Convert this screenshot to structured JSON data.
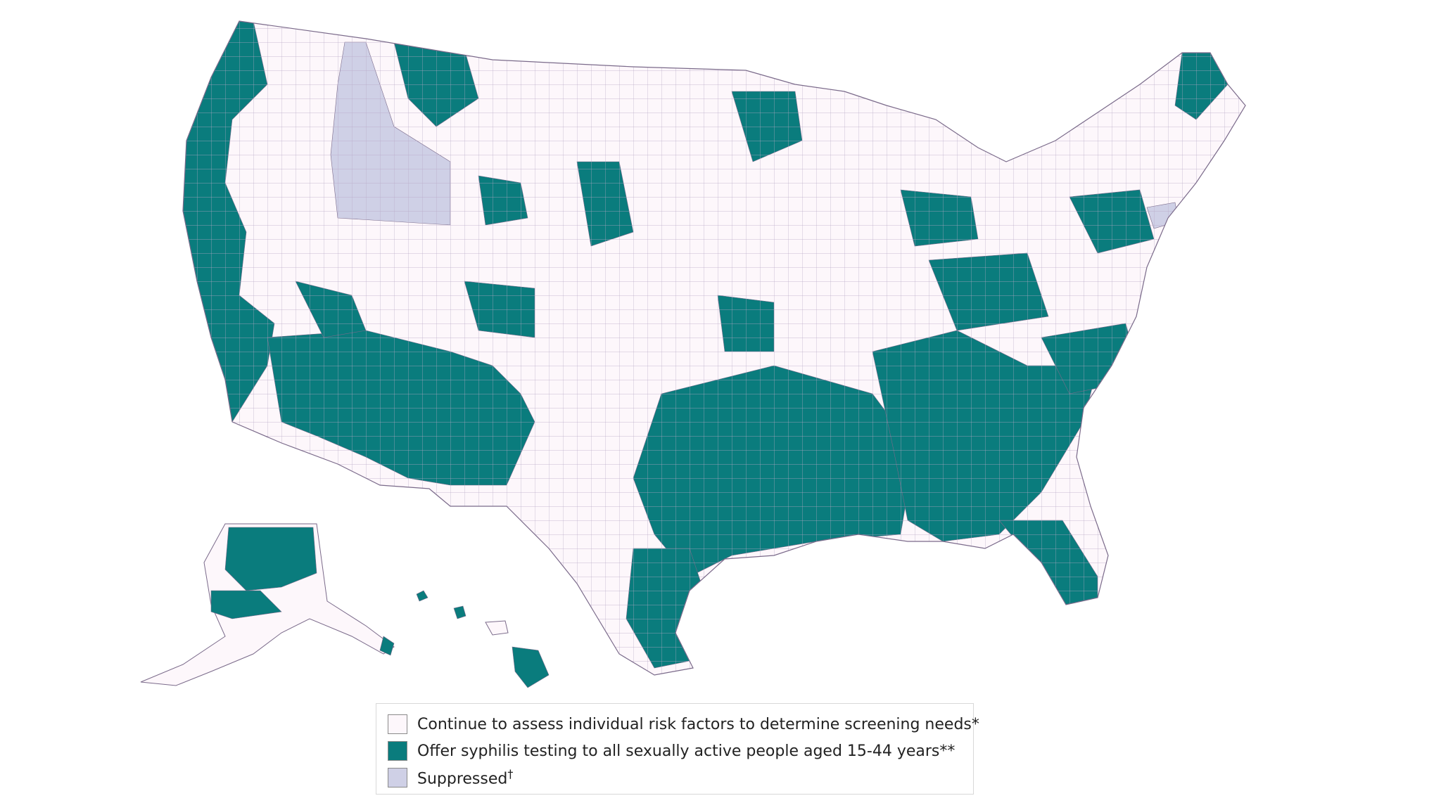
{
  "colors": {
    "assess": "#fdf7fb",
    "offer": "#0a7c7d",
    "suppressed": "#cfd0e6",
    "border": "#7a6a8a"
  },
  "legend": {
    "items": [
      {
        "key": "assess",
        "label": "Continue to assess individual risk factors to determine screening needs*"
      },
      {
        "key": "offer",
        "label": "Offer syphilis testing to all sexually active people aged 15-44 years**"
      },
      {
        "key": "suppressed",
        "label": "Suppressed",
        "marker": "†"
      }
    ]
  }
}
